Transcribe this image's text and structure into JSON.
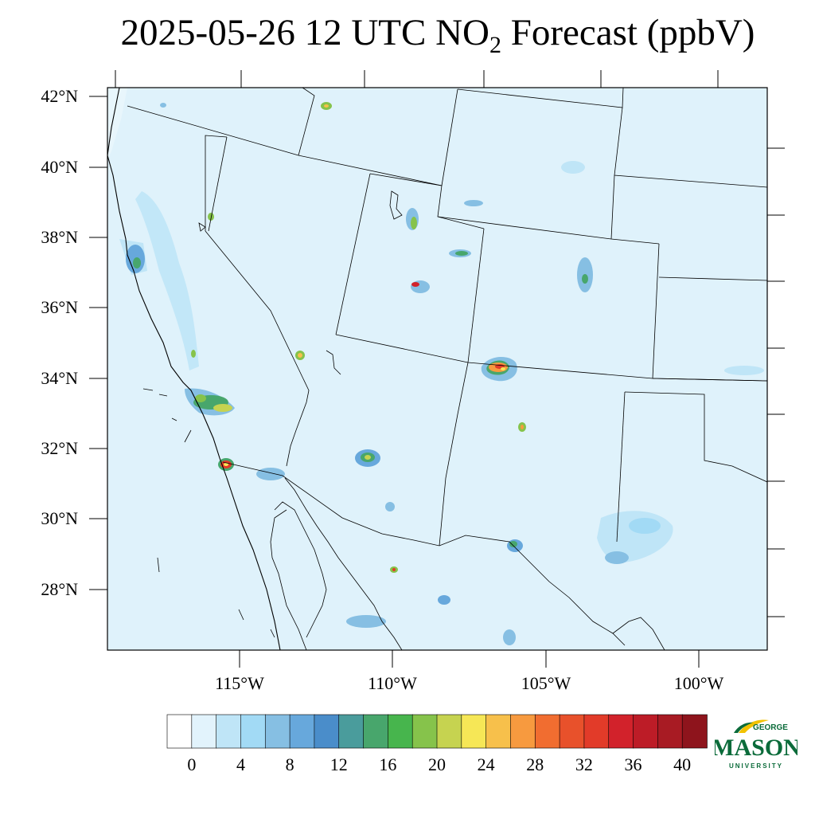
{
  "title": {
    "main": "2025-05-26 12 UTC NO",
    "subscript": "2",
    "suffix": " Forecast (ppbV)"
  },
  "map": {
    "lat_labels": [
      "42°N",
      "40°N",
      "38°N",
      "36°N",
      "34°N",
      "32°N",
      "30°N",
      "28°N"
    ],
    "lon_labels": [
      "115°W",
      "110°W",
      "105°W",
      "100°W"
    ],
    "background_color": "#dff2fb",
    "boundary_color": "#000000"
  },
  "colorbar": {
    "tick_labels": [
      "0",
      "4",
      "8",
      "12",
      "16",
      "20",
      "24",
      "28",
      "32",
      "36",
      "40"
    ],
    "colors": [
      "#ffffff",
      "#e2f3fc",
      "#bfe5f7",
      "#a2daf5",
      "#86bfe3",
      "#67a8dc",
      "#4a8dca",
      "#4a9c9c",
      "#48a66c",
      "#47b54d",
      "#86c34b",
      "#c6d350",
      "#f6e756",
      "#f7c04b",
      "#f79a3f",
      "#f16d30",
      "#e8512b",
      "#e23b29",
      "#d2222b",
      "#bd1c27",
      "#a81b23",
      "#8e141c"
    ]
  },
  "logo": {
    "line1": "GEORGE",
    "line2": "MASON",
    "line3": "UNIVERSITY"
  }
}
